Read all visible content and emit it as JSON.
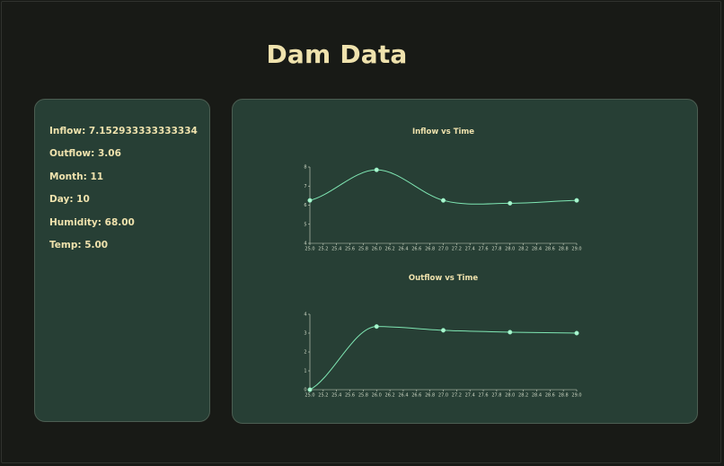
{
  "page": {
    "title": "Dam Data"
  },
  "stats": {
    "inflow": "Inflow: 7.152933333333334",
    "outflow": "Outflow: 3.06",
    "month": "Month: 11",
    "day": "Day: 10",
    "humidity": "Humidity: 68.00",
    "temp": "Temp: 5.00"
  },
  "colors": {
    "background": "#181a16",
    "panel": "#273f35",
    "panel_border": "#4c5e52",
    "text": "#efe2ad",
    "line": "#7fe6b3",
    "point_fill": "#aaf5cf"
  },
  "chart_data": [
    {
      "type": "line",
      "title": "Inflow vs Time",
      "x": [
        25.0,
        26.0,
        27.0,
        28.0,
        29.0
      ],
      "y": [
        6.25,
        7.85,
        6.25,
        6.1,
        6.25
      ],
      "xlim": [
        25.0,
        29.0
      ],
      "ylim": [
        4,
        8
      ],
      "x_ticks": [
        "25.0",
        "25.2",
        "25.4",
        "25.6",
        "25.8",
        "26.0",
        "26.2",
        "26.4",
        "26.6",
        "26.8",
        "27.0",
        "27.2",
        "27.4",
        "27.6",
        "27.8",
        "28.0",
        "28.2",
        "28.4",
        "28.6",
        "28.8",
        "29.0"
      ],
      "y_ticks": [
        "4",
        "5",
        "6",
        "7",
        "8"
      ],
      "grid": false,
      "curve": "smooth"
    },
    {
      "type": "line",
      "title": "Outflow vs Time",
      "x": [
        25.0,
        26.0,
        27.0,
        28.0,
        29.0
      ],
      "y": [
        0,
        3.35,
        3.15,
        3.05,
        3.0
      ],
      "xlim": [
        25.0,
        29.0
      ],
      "ylim": [
        0,
        4
      ],
      "x_ticks": [
        "25.0",
        "25.2",
        "25.4",
        "25.6",
        "25.8",
        "26.0",
        "26.2",
        "26.4",
        "26.6",
        "26.8",
        "27.0",
        "27.2",
        "27.4",
        "27.6",
        "27.8",
        "28.0",
        "28.2",
        "28.4",
        "28.6",
        "28.8",
        "29.0"
      ],
      "y_ticks": [
        "0",
        "1",
        "2",
        "3",
        "4"
      ],
      "grid": false,
      "curve": "smooth"
    }
  ]
}
